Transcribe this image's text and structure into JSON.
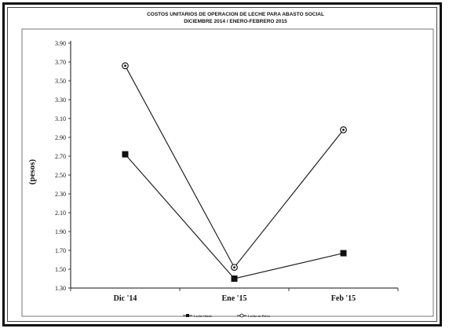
{
  "chart_data": {
    "type": "line",
    "title": "COSTOS UNITARIOS DE OPERACION DE LECHE PARA ABASTO SOCIAL",
    "subtitle": "DICIEMBRE 2014 / ENERO-FEBRERO 2015",
    "ylabel": "(pesos)",
    "xlabel": "",
    "categories": [
      "Dic '14",
      "Ene '15",
      "Feb '15"
    ],
    "ylim": [
      1.3,
      3.9
    ],
    "yticks": [
      "1.30",
      "1.50",
      "1.70",
      "1.90",
      "2.10",
      "2.30",
      "2.50",
      "2.70",
      "2.90",
      "3.10",
      "3.30",
      "3.50",
      "3.70",
      "3.90"
    ],
    "series": [
      {
        "name": "Leche fluida",
        "marker": "square",
        "values": [
          2.72,
          1.4,
          1.67
        ]
      },
      {
        "name": "Leche en Polvo",
        "marker": "circle",
        "values": [
          3.66,
          1.52,
          2.98
        ]
      }
    ],
    "grid": false,
    "legend": "bottom"
  }
}
